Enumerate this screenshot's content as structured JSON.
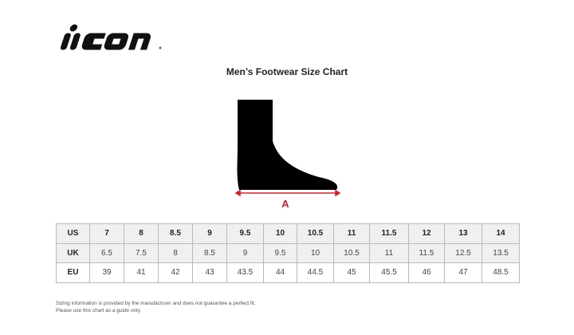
{
  "logo_text": "icon",
  "title": "Men’s Footwear Size Chart",
  "diagram": {
    "measure_label": "A",
    "accent_color": "#d0202a"
  },
  "table": {
    "rows": [
      {
        "label": "US",
        "values": [
          "7",
          "8",
          "8.5",
          "9",
          "9.5",
          "10",
          "10.5",
          "11",
          "11.5",
          "12",
          "13",
          "14"
        ]
      },
      {
        "label": "UK",
        "values": [
          "6.5",
          "7.5",
          "8",
          "8.5",
          "9",
          "9.5",
          "10",
          "10.5",
          "11",
          "11.5",
          "12.5",
          "13.5"
        ]
      },
      {
        "label": "EU",
        "values": [
          "39",
          "41",
          "42",
          "43",
          "43.5",
          "44",
          "44.5",
          "45",
          "45.5",
          "46",
          "47",
          "48.5"
        ]
      }
    ]
  },
  "note": {
    "line1": "Sizing information is provided by the manufacturer and does not guarantee a perfect fit.",
    "line2": "Please use this chart as a guide only."
  }
}
